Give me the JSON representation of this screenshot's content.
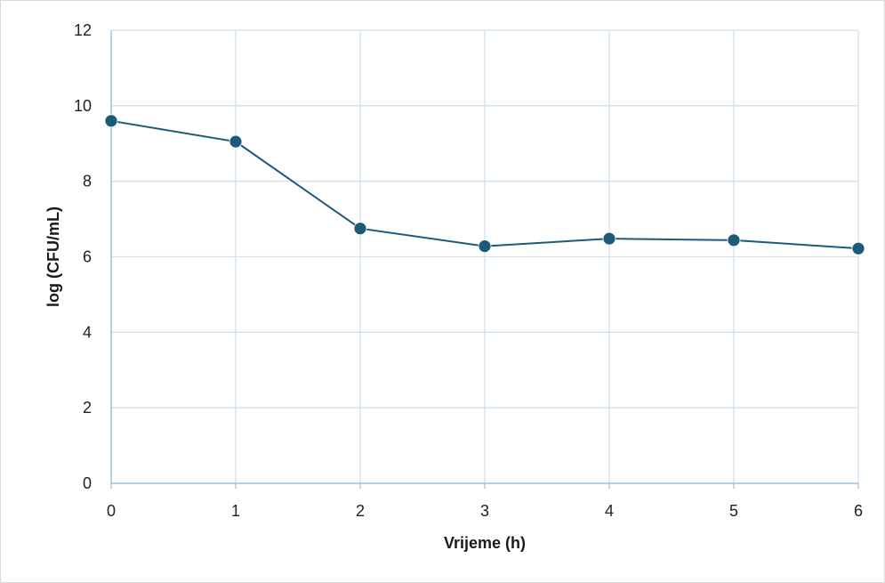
{
  "chart_data": {
    "type": "line",
    "xlabel": "Vrijeme (h)",
    "ylabel": "log (CFU/mL)",
    "x": [
      0,
      1,
      2,
      3,
      4,
      5,
      6
    ],
    "series": [
      {
        "values": [
          9.6,
          9.05,
          6.75,
          6.28,
          6.48,
          6.44,
          6.22
        ]
      }
    ],
    "xlim": [
      0,
      6
    ],
    "ylim": [
      0,
      12
    ],
    "xticks": [
      "0",
      "1",
      "2",
      "3",
      "4",
      "5",
      "6"
    ],
    "yticks": [
      "0",
      "2",
      "4",
      "6",
      "8",
      "10",
      "12"
    ],
    "grid": true,
    "legend": "none",
    "colors": {
      "series": "#1c5a7a",
      "grid": "#cfe0f2",
      "axis": "#9fc0e0"
    }
  }
}
